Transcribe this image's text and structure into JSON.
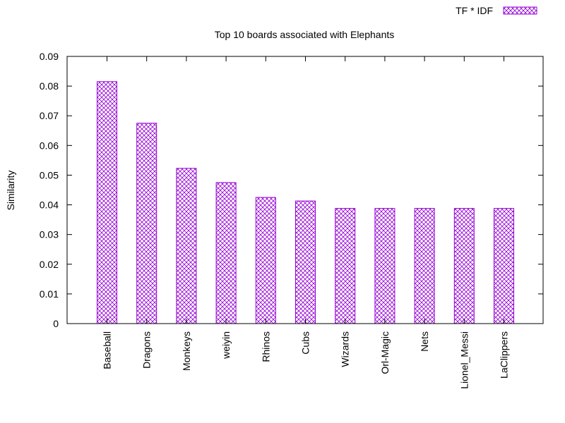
{
  "colors": {
    "bar_outline": "#9400D3",
    "hatch": "#9400D3",
    "axis": "#000000",
    "background": "#ffffff"
  },
  "chart_data": {
    "type": "bar",
    "title": "Top 10 boards associated with Elephants",
    "xlabel": "",
    "ylabel": "Similarity",
    "ylim": [
      0,
      0.09
    ],
    "yticks": [
      "0",
      "0.01",
      "0.02",
      "0.03",
      "0.04",
      "0.05",
      "0.06",
      "0.07",
      "0.08",
      "0.09"
    ],
    "grid": false,
    "legend_position": "top-right",
    "categories": [
      "Baseball",
      "Dragons",
      "Monkeys",
      "weiyin",
      "Rhinos",
      "Cubs",
      "Wizards",
      "Orl-Magic",
      "Nets",
      "Lionel_Messi",
      "LaClippers"
    ],
    "series": [
      {
        "name": "TF * IDF",
        "values": [
          0.0815,
          0.0675,
          0.0523,
          0.0475,
          0.0425,
          0.0413,
          0.0388,
          0.0388,
          0.0388,
          0.0388,
          0.0388
        ]
      }
    ]
  }
}
